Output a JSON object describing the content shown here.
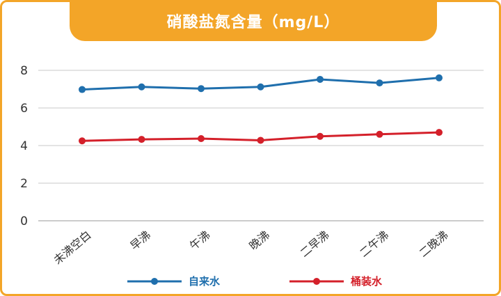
{
  "chart_data": {
    "type": "line",
    "title": "硝酸盐氮含量（mg/L）",
    "categories": [
      "未沸空白",
      "早沸",
      "午沸",
      "晚沸",
      "二早沸",
      "二午沸",
      "二晚沸"
    ],
    "series": [
      {
        "name": "自来水",
        "color": "#1f6fad",
        "values": [
          6.98,
          7.12,
          7.03,
          7.12,
          7.52,
          7.33,
          7.6
        ]
      },
      {
        "name": "桶装水",
        "color": "#d4202a",
        "values": [
          4.25,
          4.33,
          4.37,
          4.28,
          4.49,
          4.6,
          4.7
        ]
      }
    ],
    "ylim": [
      0,
      8
    ],
    "yticks": [
      0,
      2,
      4,
      6,
      8
    ],
    "grid": true,
    "legend_position": "bottom"
  },
  "colors": {
    "frame": "#f3a528",
    "grid": "#c8c8c8"
  }
}
